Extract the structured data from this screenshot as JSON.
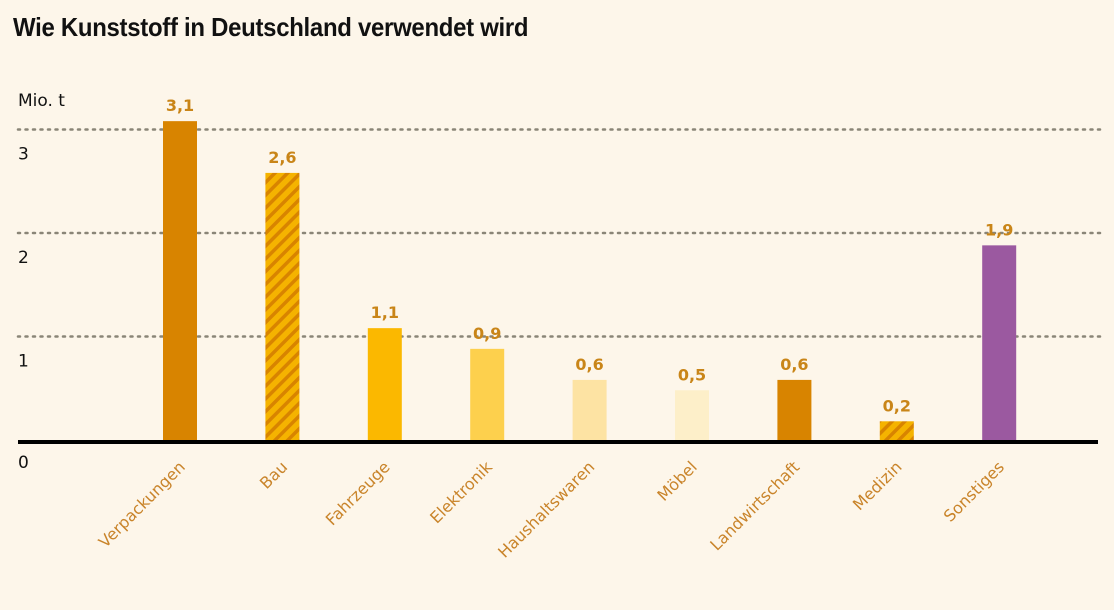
{
  "chart_data": {
    "type": "bar",
    "title": "Wie Kunststoff in Deutschland verwendet wird",
    "ylabel": "Mio. t",
    "xlabel": "",
    "ylim": [
      0,
      3.1
    ],
    "yticks": [
      0,
      1,
      2,
      3
    ],
    "ytick_labels": [
      "0",
      "1",
      "2",
      "3"
    ],
    "grid": "horizontal dotted",
    "categories": [
      "Verpackungen",
      "Bau",
      "Fahrzeuge",
      "Elektronik",
      "Haushaltswaren",
      "Möbel",
      "Landwirtschaft",
      "Medizin",
      "Sonstiges"
    ],
    "values": [
      3.1,
      2.6,
      1.1,
      0.9,
      0.6,
      0.5,
      0.6,
      0.2,
      1.9
    ],
    "value_labels": [
      "3,1",
      "2,6",
      "1,1",
      "0,9",
      "0,6",
      "0,5",
      "0,6",
      "0,2",
      "1,9"
    ],
    "bar_colors": [
      "#d88400",
      "#f5b300",
      "#fbb800",
      "#fdd04d",
      "#fde3a3",
      "#fdefc9",
      "#d88400",
      "#f5b300",
      "#9b59a0"
    ],
    "bar_hatched": [
      false,
      true,
      false,
      false,
      false,
      false,
      false,
      true,
      false
    ],
    "hatch_color": "#d88400",
    "label_color": "#c98518"
  }
}
